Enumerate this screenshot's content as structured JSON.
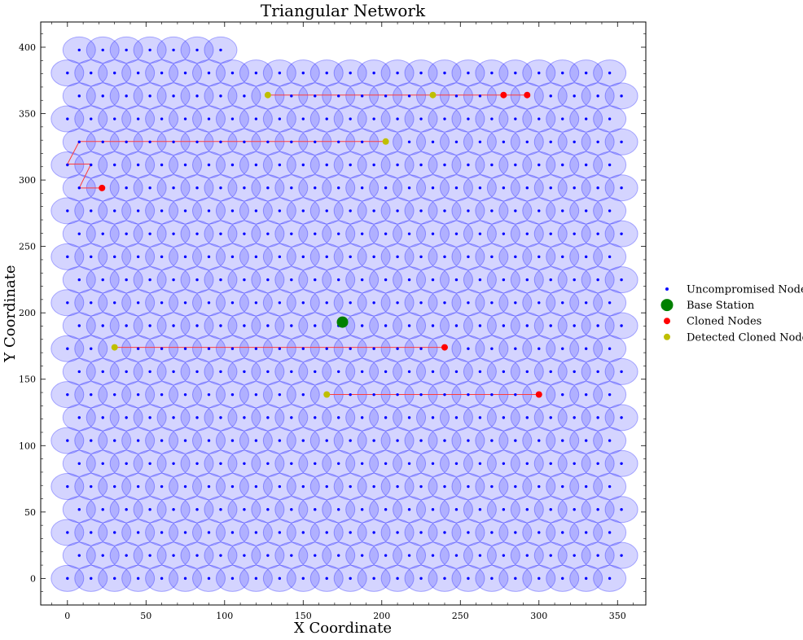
{
  "chart_data": {
    "type": "scatter",
    "title": "Triangular Network",
    "xlabel": "X Coordinate",
    "ylabel": "Y Coordinate",
    "xlim": [
      -17,
      368
    ],
    "ylim": [
      -20,
      419
    ],
    "xticks": [
      0,
      50,
      100,
      150,
      200,
      250,
      300,
      350
    ],
    "yticks": [
      0,
      50,
      100,
      150,
      200,
      250,
      300,
      350,
      400
    ],
    "grid": false,
    "legend_position": "center-right",
    "coverage_color": "#0000ff",
    "series": [
      {
        "name": "Uncompromised Nodes",
        "marker": "small-dot",
        "color": "#0000ff",
        "grid_spec": {
          "x_spacing": 15,
          "row_spacing": 17.3,
          "rows": 24,
          "odd_row_x_offset": 7.5,
          "even_row_x_max": 345,
          "odd_row_x_max": 352.5,
          "top_row_x_max": 97.5
        }
      },
      {
        "name": "Base Station",
        "color": "#008000",
        "points": [
          [
            175,
            193
          ]
        ]
      },
      {
        "name": "Cloned Nodes",
        "color": "#ff0000",
        "points": [
          [
            22,
            294
          ],
          [
            240,
            174
          ],
          [
            277.5,
            364
          ],
          [
            292.5,
            364
          ],
          [
            300,
            138.5
          ]
        ]
      },
      {
        "name": "Detected Cloned Nodes",
        "color": "#bfbf00",
        "points": [
          [
            30,
            174
          ],
          [
            127.5,
            364
          ],
          [
            202.5,
            329
          ],
          [
            232.5,
            364
          ],
          [
            165,
            138.5
          ]
        ]
      }
    ],
    "paths": [
      {
        "color": "#ff3b3b",
        "points": [
          [
            30,
            174
          ],
          [
            240,
            174
          ]
        ]
      },
      {
        "color": "#ff3b3b",
        "points": [
          [
            165,
            138.5
          ],
          [
            300,
            138.5
          ]
        ]
      },
      {
        "color": "#ff3b3b",
        "points": [
          [
            127.5,
            364
          ],
          [
            292.5,
            364
          ]
        ]
      },
      {
        "color": "#ff3b3b",
        "points": [
          [
            22,
            294
          ],
          [
            7.5,
            294
          ],
          [
            15,
            312
          ],
          [
            0,
            312
          ],
          [
            7.5,
            329
          ],
          [
            202.5,
            329
          ]
        ]
      }
    ]
  }
}
